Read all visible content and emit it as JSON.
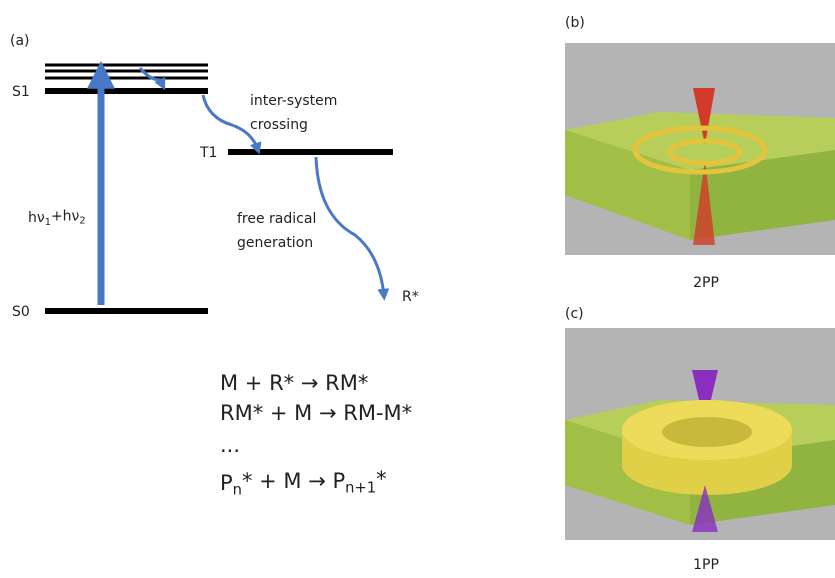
{
  "panel_a": {
    "label": "(a)",
    "levels": {
      "s1": "S1",
      "s0": "S0",
      "t1": "T1"
    },
    "excitation": [
      {
        "text": "hν"
      },
      {
        "text": "1",
        "sub": true
      },
      {
        "text": "+hν"
      },
      {
        "text": "2",
        "sub": true
      }
    ],
    "isc": [
      "inter-system",
      "crossing"
    ],
    "radical": [
      "free radical",
      "generation"
    ],
    "radical_label": "R*",
    "equations": [
      [
        {
          "text": "M + R* → RM*"
        }
      ],
      [
        {
          "text": "RM* + M → RM-M*"
        }
      ],
      [
        {
          "text": "..."
        }
      ],
      [
        {
          "text": "P"
        },
        {
          "text": "n",
          "sub": true
        },
        {
          "text": "* + M → P"
        },
        {
          "text": "n+1",
          "sub": true
        },
        {
          "text": "*"
        }
      ]
    ]
  },
  "panel_b": {
    "label": "(b)",
    "caption": "2PP"
  },
  "panel_c": {
    "label": "(c)",
    "caption": "1PP"
  }
}
